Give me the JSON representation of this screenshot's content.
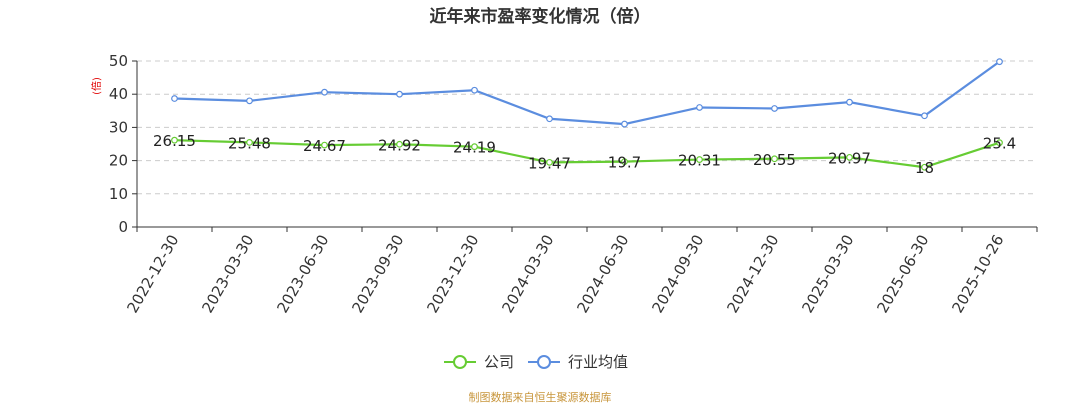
{
  "chart_data": {
    "type": "line",
    "title": "近年来市盈率变化情况（倍）",
    "ylabel": "(倍)",
    "xlabel": "",
    "ylim": [
      0,
      50
    ],
    "yticks": [
      0,
      10,
      20,
      30,
      40,
      50
    ],
    "grid": true,
    "legend_position": "bottom-center",
    "categories": [
      "2022-12-30",
      "2023-03-30",
      "2023-06-30",
      "2023-09-30",
      "2023-12-30",
      "2024-03-30",
      "2024-06-30",
      "2024-09-30",
      "2024-12-30",
      "2025-03-30",
      "2025-06-30",
      "2025-10-26"
    ],
    "series": [
      {
        "name": "公司",
        "color": "#66cc33",
        "show_labels": true,
        "values": [
          26.15,
          25.48,
          24.67,
          24.92,
          24.19,
          19.47,
          19.7,
          20.31,
          20.55,
          20.97,
          18,
          25.4
        ]
      },
      {
        "name": "行业均值",
        "color": "#5b8ddf",
        "show_labels": false,
        "values": [
          38.7,
          38.0,
          40.6,
          40.0,
          41.2,
          32.6,
          31.0,
          36.0,
          35.7,
          37.6,
          33.5,
          49.8
        ]
      }
    ],
    "source": "制图数据来自恒生聚源数据库"
  }
}
